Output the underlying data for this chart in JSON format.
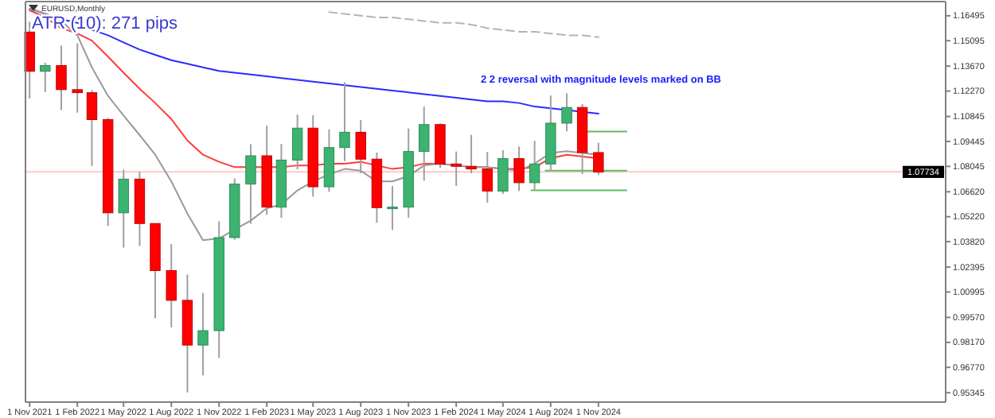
{
  "chart_data": {
    "type": "candlestick",
    "title": "EURUSD,Monthly",
    "annotations": [
      "ATR (10): 271 pips",
      "2 2 reversal with magnitude levels marked on BB"
    ],
    "x": [
      "2021-11",
      "2021-12",
      "2022-01",
      "2022-02",
      "2022-03",
      "2022-04",
      "2022-05",
      "2022-06",
      "2022-07",
      "2022-08",
      "2022-09",
      "2022-10",
      "2022-11",
      "2022-12",
      "2023-01",
      "2023-02",
      "2023-03",
      "2023-04",
      "2023-05",
      "2023-06",
      "2023-07",
      "2023-08",
      "2023-09",
      "2023-10",
      "2023-11",
      "2023-12",
      "2024-01",
      "2024-02",
      "2024-03",
      "2024-04",
      "2024-05",
      "2024-06",
      "2024-07",
      "2024-08",
      "2024-09",
      "2024-10",
      "2024-11"
    ],
    "ohlc": [
      [
        1.1558,
        1.1616,
        1.1186,
        1.1338
      ],
      [
        1.1338,
        1.1386,
        1.1221,
        1.137
      ],
      [
        1.137,
        1.1482,
        1.1121,
        1.1235
      ],
      [
        1.1235,
        1.1495,
        1.1106,
        1.1218
      ],
      [
        1.1218,
        1.1233,
        1.0806,
        1.1067
      ],
      [
        1.1067,
        1.1076,
        1.0471,
        1.0544
      ],
      [
        1.0544,
        1.0786,
        1.0349,
        1.0733
      ],
      [
        1.0733,
        1.0774,
        1.0359,
        1.0484
      ],
      [
        1.0484,
        1.0486,
        0.9952,
        1.022
      ],
      [
        1.022,
        1.0369,
        0.9901,
        1.0053
      ],
      [
        1.0053,
        1.0198,
        0.9536,
        0.9802
      ],
      [
        0.9802,
        1.0094,
        0.9632,
        0.9883
      ],
      [
        0.9883,
        1.0497,
        0.973,
        1.0405
      ],
      [
        1.0405,
        1.0736,
        1.0393,
        1.0705
      ],
      [
        1.0705,
        1.0929,
        1.0483,
        1.0864
      ],
      [
        1.0864,
        1.1033,
        1.0533,
        1.0576
      ],
      [
        1.0576,
        1.093,
        1.0516,
        1.084
      ],
      [
        1.084,
        1.1095,
        1.0788,
        1.1019
      ],
      [
        1.1019,
        1.1092,
        1.0635,
        1.069
      ],
      [
        1.069,
        1.1012,
        1.0662,
        1.091
      ],
      [
        1.091,
        1.1276,
        1.0834,
        1.0996
      ],
      [
        1.0996,
        1.1064,
        1.0766,
        1.0845
      ],
      [
        1.0845,
        1.0882,
        1.0488,
        1.0573
      ],
      [
        1.0573,
        1.0695,
        1.0448,
        1.0576
      ],
      [
        1.0576,
        1.1017,
        1.0517,
        1.0888
      ],
      [
        1.0888,
        1.114,
        1.0724,
        1.1039
      ],
      [
        1.1039,
        1.1046,
        1.0795,
        1.0818
      ],
      [
        1.0818,
        1.0888,
        1.0695,
        1.0805
      ],
      [
        1.0805,
        1.0981,
        1.0766,
        1.079
      ],
      [
        1.079,
        1.0885,
        1.0601,
        1.0666
      ],
      [
        1.0666,
        1.0895,
        1.065,
        1.0848
      ],
      [
        1.0848,
        1.0916,
        1.0666,
        1.0713
      ],
      [
        1.0713,
        1.0948,
        1.0668,
        1.0818
      ],
      [
        1.0818,
        1.1202,
        1.0778,
        1.1047
      ],
      [
        1.1047,
        1.1214,
        1.1001,
        1.1135
      ],
      [
        1.1135,
        1.1154,
        1.0761,
        1.0882
      ],
      [
        1.0882,
        1.0937,
        1.0757,
        1.0773
      ]
    ],
    "series": [
      {
        "type": "line",
        "color": "#2b2bff",
        "values": [
          1.169,
          1.166,
          1.163,
          1.161,
          1.157,
          1.154,
          1.15,
          1.146,
          1.143,
          1.14,
          1.138,
          1.136,
          1.134,
          1.133,
          1.132,
          1.131,
          1.13,
          1.129,
          1.128,
          1.127,
          1.126,
          1.125,
          1.124,
          1.123,
          1.122,
          1.121,
          1.12,
          1.119,
          1.118,
          1.117,
          1.117,
          1.116,
          1.114,
          1.113,
          1.112,
          1.111,
          1.11
        ]
      },
      {
        "type": "line",
        "color": "#ff3b3b",
        "values": [
          1.168,
          1.164,
          1.158,
          1.155,
          1.151,
          1.142,
          1.133,
          1.124,
          1.116,
          1.107,
          1.095,
          1.087,
          1.083,
          1.08,
          1.08,
          1.08,
          1.08,
          1.081,
          1.081,
          1.082,
          1.082,
          1.083,
          1.081,
          1.079,
          1.08,
          1.082,
          1.082,
          1.081,
          1.08,
          1.08,
          1.079,
          1.079,
          1.08,
          1.085,
          1.087,
          1.086,
          1.085
        ]
      },
      {
        "type": "line",
        "color": "#9a9a9a",
        "values": [
          1.169,
          1.166,
          1.162,
          1.154,
          1.136,
          1.12,
          1.109,
          1.098,
          1.087,
          1.072,
          1.054,
          1.039,
          1.04,
          1.045,
          1.05,
          1.057,
          1.059,
          1.067,
          1.072,
          1.076,
          1.079,
          1.078,
          1.072,
          1.072,
          1.075,
          1.081,
          1.082,
          1.081,
          1.08,
          1.08,
          1.079,
          1.078,
          1.082,
          1.088,
          1.089,
          1.088,
          1.087
        ]
      },
      {
        "type": "line",
        "color": "#b4b4b4",
        "line_style": "dashed",
        "values": [
          null,
          null,
          null,
          null,
          null,
          null,
          null,
          null,
          null,
          null,
          null,
          null,
          null,
          null,
          null,
          null,
          null,
          null,
          null,
          1.167,
          1.166,
          1.165,
          1.164,
          1.164,
          1.163,
          1.162,
          1.161,
          1.161,
          1.16,
          1.158,
          1.157,
          1.156,
          1.156,
          1.155,
          1.154,
          1.154,
          1.153
        ]
      },
      {
        "type": "line",
        "color": "#5cbf5c",
        "x": [
          "2024-10-10",
          "2024-12-25"
        ],
        "values": [
          1.1,
          1.1
        ]
      },
      {
        "type": "line",
        "color": "#5cbf5c",
        "x": [
          "2024-07-22",
          "2024-12-25"
        ],
        "values": [
          1.078,
          1.078
        ]
      },
      {
        "type": "line",
        "color": "#5cbf5c",
        "x": [
          "2024-06-25",
          "2024-12-25"
        ],
        "values": [
          1.067,
          1.067
        ]
      }
    ],
    "ref_lines": [
      {
        "axis": "y",
        "value": 1.07734,
        "label": "1.07734",
        "color": "#ffc8c8"
      }
    ],
    "xlim": [
      "2021-10-24",
      "2026-09-01"
    ],
    "xticks": [
      {
        "value": "2021-11",
        "label": "1 Nov 2021"
      },
      {
        "value": "2022-02",
        "label": "1 Feb 2022"
      },
      {
        "value": "2022-05",
        "label": "1 May 2022"
      },
      {
        "value": "2022-08",
        "label": "1 Aug 2022"
      },
      {
        "value": "2022-11",
        "label": "1 Nov 2022"
      },
      {
        "value": "2023-02",
        "label": "1 Feb 2023"
      },
      {
        "value": "2023-05",
        "label": "1 May 2023"
      },
      {
        "value": "2023-08",
        "label": "1 Aug 2023"
      },
      {
        "value": "2023-11",
        "label": "1 Nov 2023"
      },
      {
        "value": "2024-02",
        "label": "1 Feb 2024"
      },
      {
        "value": "2024-05",
        "label": "1 May 2024"
      },
      {
        "value": "2024-08",
        "label": "1 Aug 2024"
      },
      {
        "value": "2024-11",
        "label": "1 Nov 2024"
      }
    ],
    "ylim": [
      0.9482,
      1.1729
    ],
    "yticks": [
      1.16495,
      1.15095,
      {
        "value": 1.1367,
        "label": "1.13670"
      },
      {
        "value": 1.1227,
        "label": "1.12270"
      },
      1.10845,
      1.09445,
      1.08045,
      {
        "value": 1.0662,
        "label": "1.06620"
      },
      {
        "value": 1.0522,
        "label": "1.05220"
      },
      {
        "value": 1.0382,
        "label": "1.03820"
      },
      1.02395,
      1.00995,
      {
        "value": 0.9957,
        "label": "0.99570"
      },
      {
        "value": 0.9817,
        "label": "0.98170"
      },
      {
        "value": 0.9677,
        "label": "0.96770"
      },
      0.95345
    ]
  }
}
